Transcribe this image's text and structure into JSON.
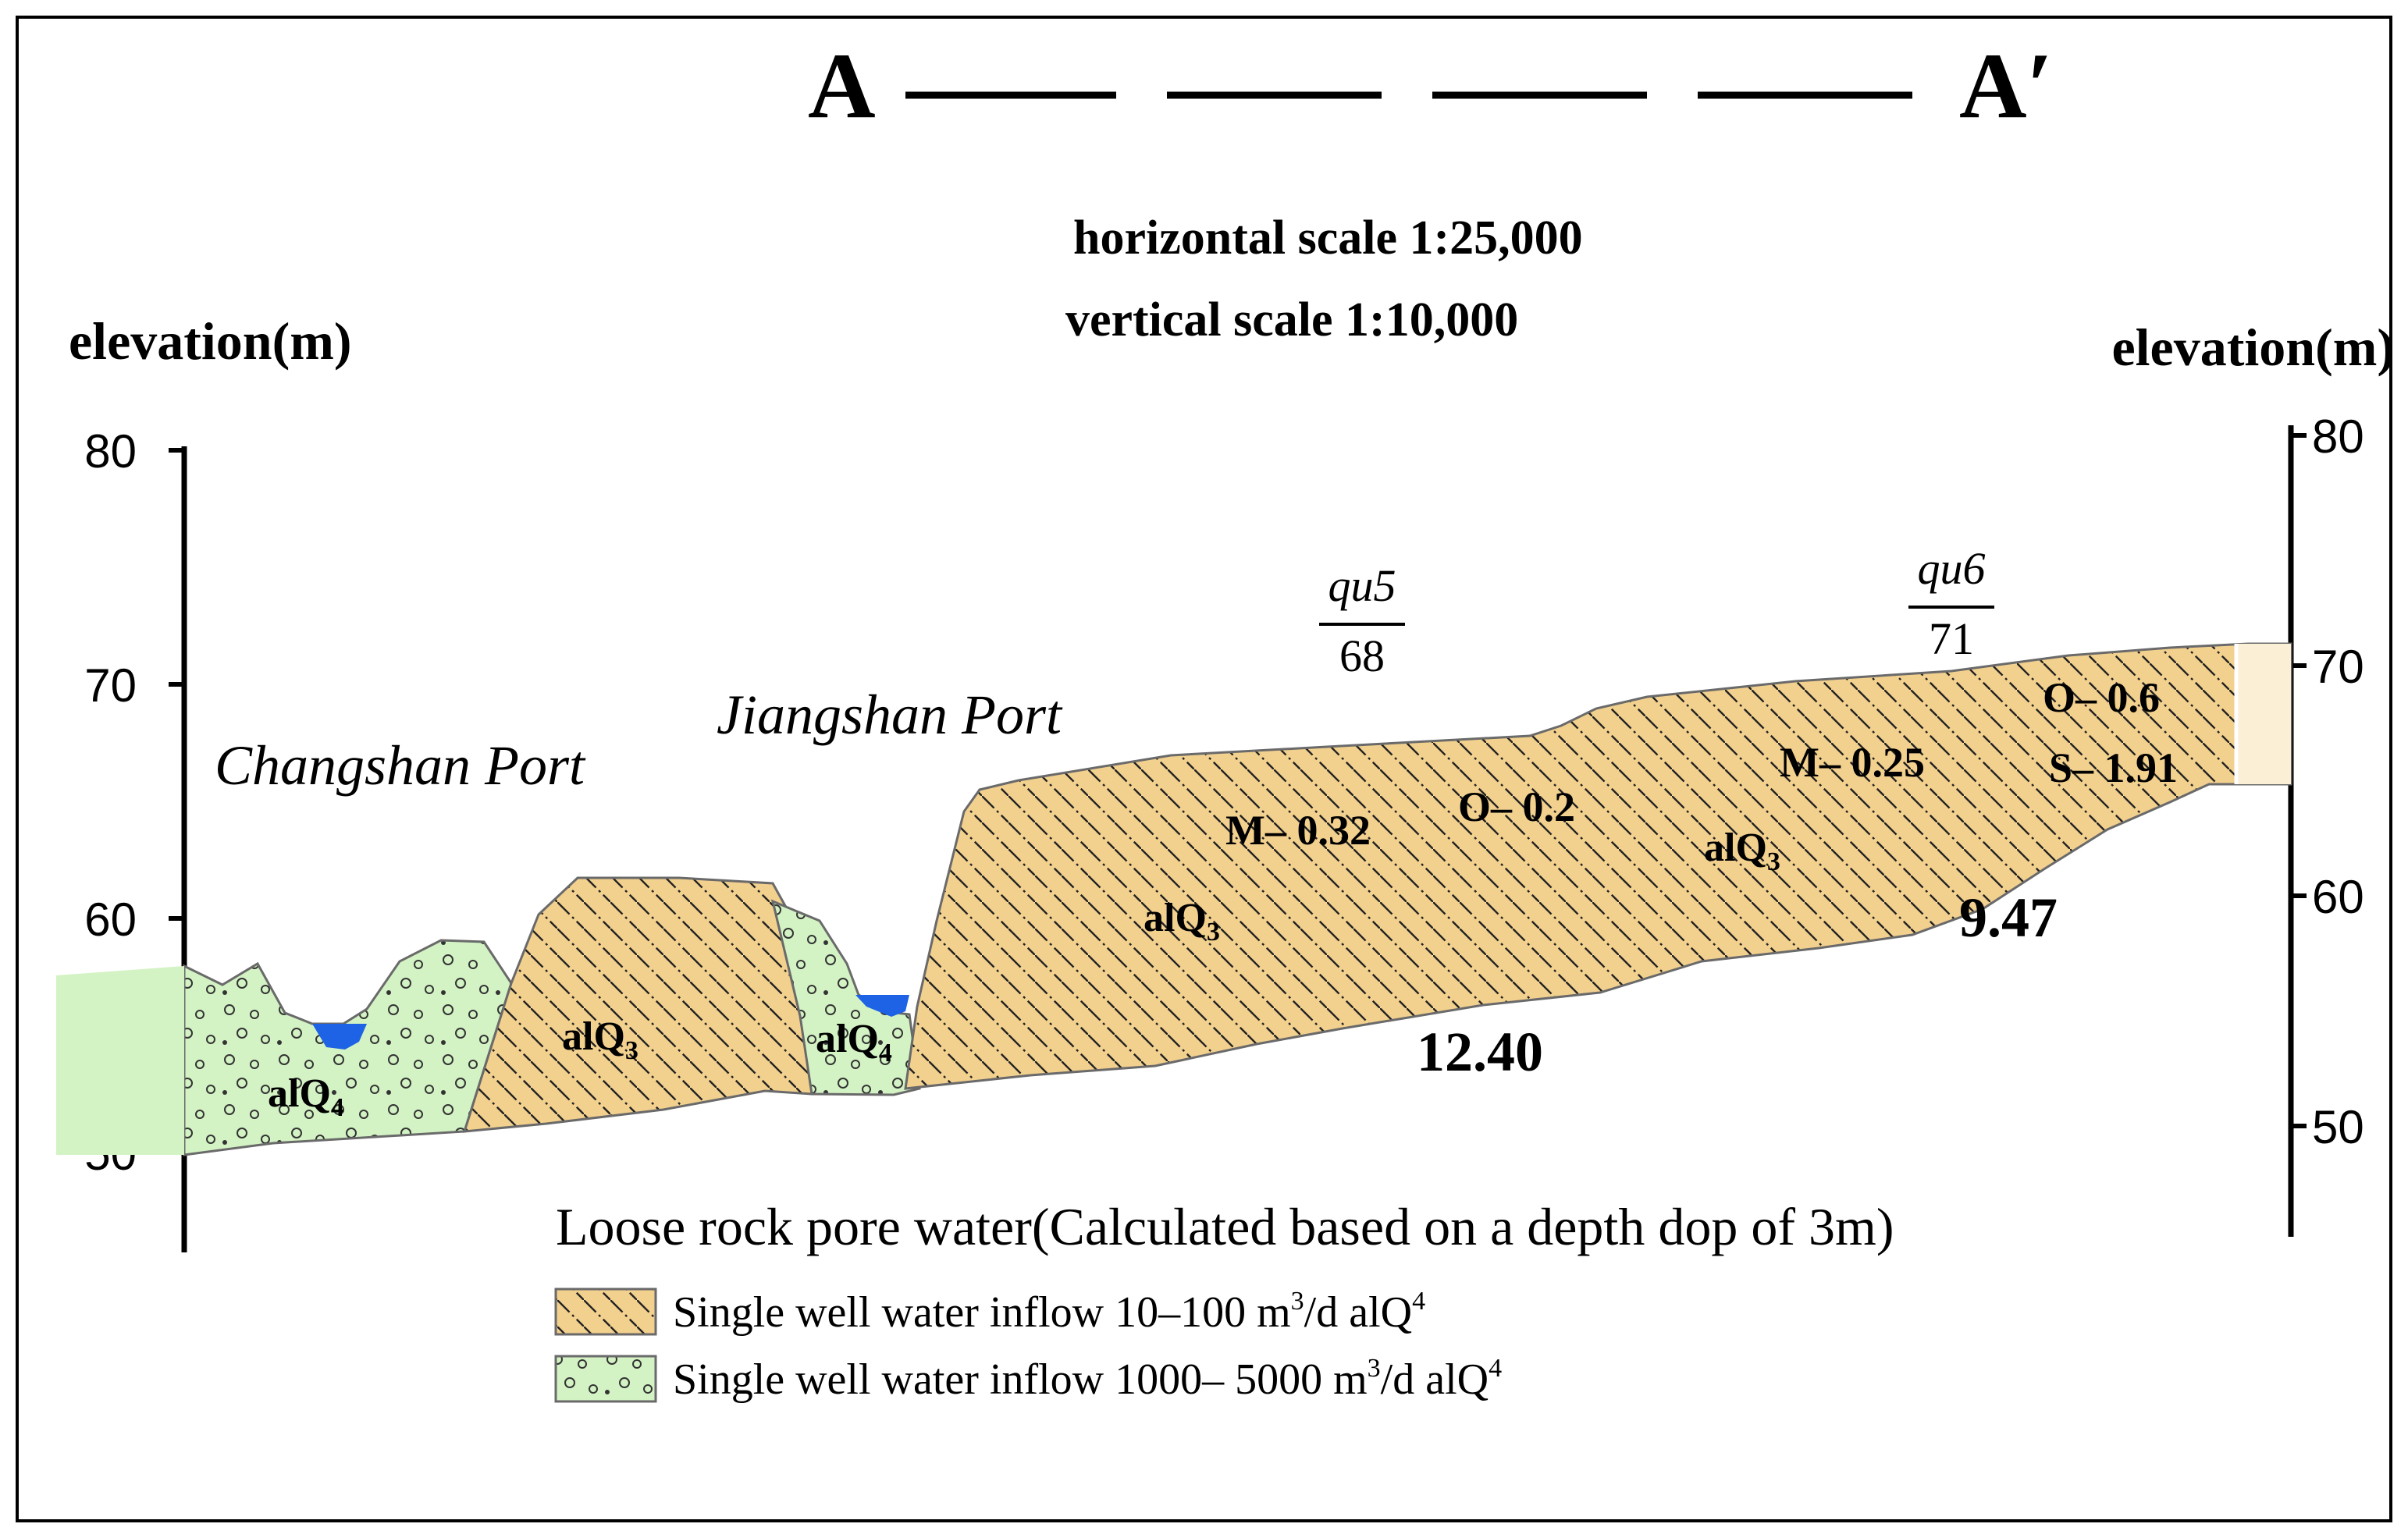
{
  "section": {
    "start_label": "A",
    "end_label": "A′",
    "horizontal_scale": "horizontal scale 1:25,000",
    "vertical_scale": "vertical scale 1:10,000"
  },
  "axes": {
    "left_title": "elevation(m)",
    "right_title": "elevation(m)",
    "left_ticks": [
      {
        "value": 80,
        "label": "80"
      },
      {
        "value": 70,
        "label": "70"
      },
      {
        "value": 60,
        "label": "60"
      },
      {
        "value": 50,
        "label": "50"
      }
    ],
    "right_ticks": [
      {
        "value": 80,
        "label": "80"
      },
      {
        "value": 70,
        "label": "70"
      },
      {
        "value": 60,
        "label": "60"
      },
      {
        "value": 50,
        "label": "50"
      }
    ]
  },
  "places": {
    "changshan": "Changshan Port",
    "jiangshan": "Jiangshan Port"
  },
  "wells": {
    "qu5": {
      "name": "qu5",
      "value": "68"
    },
    "qu6": {
      "name": "qu6",
      "value": "71"
    }
  },
  "units": {
    "alq4_left": {
      "text": "alQ",
      "sub": "4"
    },
    "alq3_a": {
      "text": "alQ",
      "sub": "3"
    },
    "alq4_mid": {
      "text": "alQ",
      "sub": "4"
    },
    "alq3_b": {
      "text": "alQ",
      "sub": "3"
    },
    "alq3_c": {
      "text": "alQ",
      "sub": "3"
    }
  },
  "annotations": {
    "m032": "M– 0.32",
    "o02": "O– 0.2",
    "m025": "M– 0.25",
    "o06": "O– 0.6",
    "s191": "S– 1.91",
    "d1240": "12.40",
    "d947": "9.47"
  },
  "legend": {
    "title": "Loose rock pore water(Calculated based on a depth dop of 3m)",
    "items": [
      {
        "pattern": "hatch",
        "text_before": "Single well water inflow 10–100 m",
        "sup": "3",
        "text_after": "/d alQ",
        "sup2": "4"
      },
      {
        "pattern": "dots",
        "text_before": "Single well water inflow 1000– 5000 m",
        "sup": "3",
        "text_after": "/d alQ",
        "sup2": "4"
      }
    ]
  },
  "colors": {
    "tan": "#F2D08E",
    "green": "#D3F3C4",
    "water": "#1E63E6",
    "outline": "#6A6A6A"
  }
}
